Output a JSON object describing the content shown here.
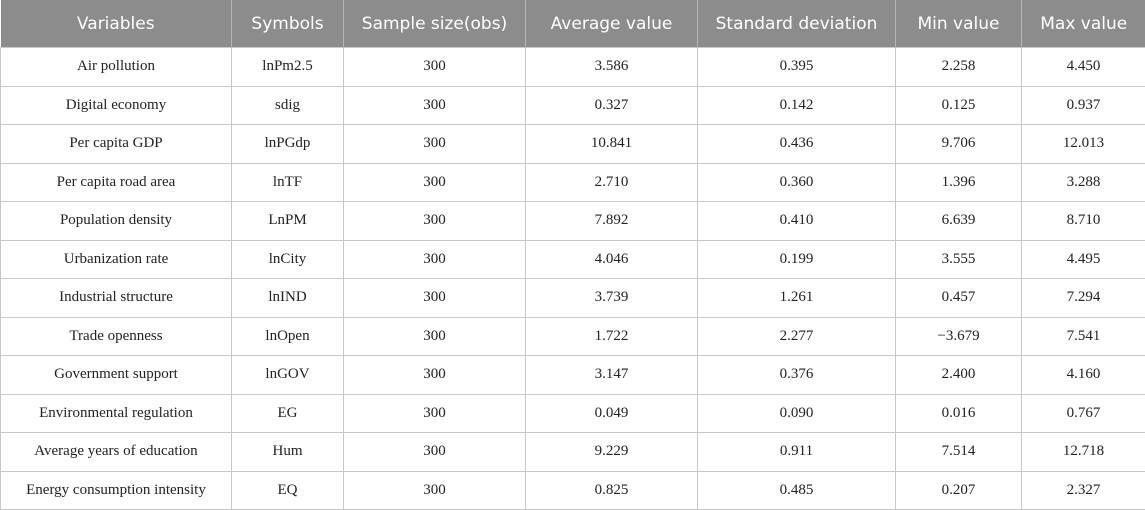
{
  "table": {
    "headers": [
      "Variables",
      "Symbols",
      "Sample size(obs)",
      "Average value",
      "Standard deviation",
      "Min value",
      "Max value"
    ],
    "rows": [
      [
        "Air pollution",
        "lnPm2.5",
        "300",
        "3.586",
        "0.395",
        "2.258",
        "4.450"
      ],
      [
        "Digital economy",
        "sdig",
        "300",
        "0.327",
        "0.142",
        "0.125",
        "0.937"
      ],
      [
        "Per capita GDP",
        "lnPGdp",
        "300",
        "10.841",
        "0.436",
        "9.706",
        "12.013"
      ],
      [
        "Per capita road area",
        "lnTF",
        "300",
        "2.710",
        "0.360",
        "1.396",
        "3.288"
      ],
      [
        "Population density",
        "LnPM",
        "300",
        "7.892",
        "0.410",
        "6.639",
        "8.710"
      ],
      [
        "Urbanization rate",
        "lnCity",
        "300",
        "4.046",
        "0.199",
        "3.555",
        "4.495"
      ],
      [
        "Industrial structure",
        "lnIND",
        "300",
        "3.739",
        "1.261",
        "0.457",
        "7.294"
      ],
      [
        "Trade openness",
        "lnOpen",
        "300",
        "1.722",
        "2.277",
        "−3.679",
        "7.541"
      ],
      [
        "Government support",
        "lnGOV",
        "300",
        "3.147",
        "0.376",
        "2.400",
        "4.160"
      ],
      [
        "Environmental regulation",
        "EG",
        "300",
        "0.049",
        "0.090",
        "0.016",
        "0.767"
      ],
      [
        "Average years of education",
        "Hum",
        "300",
        "9.229",
        "0.911",
        "7.514",
        "12.718"
      ],
      [
        "Energy consumption intensity",
        "EQ",
        "300",
        "0.825",
        "0.485",
        "0.207",
        "2.327"
      ]
    ]
  }
}
